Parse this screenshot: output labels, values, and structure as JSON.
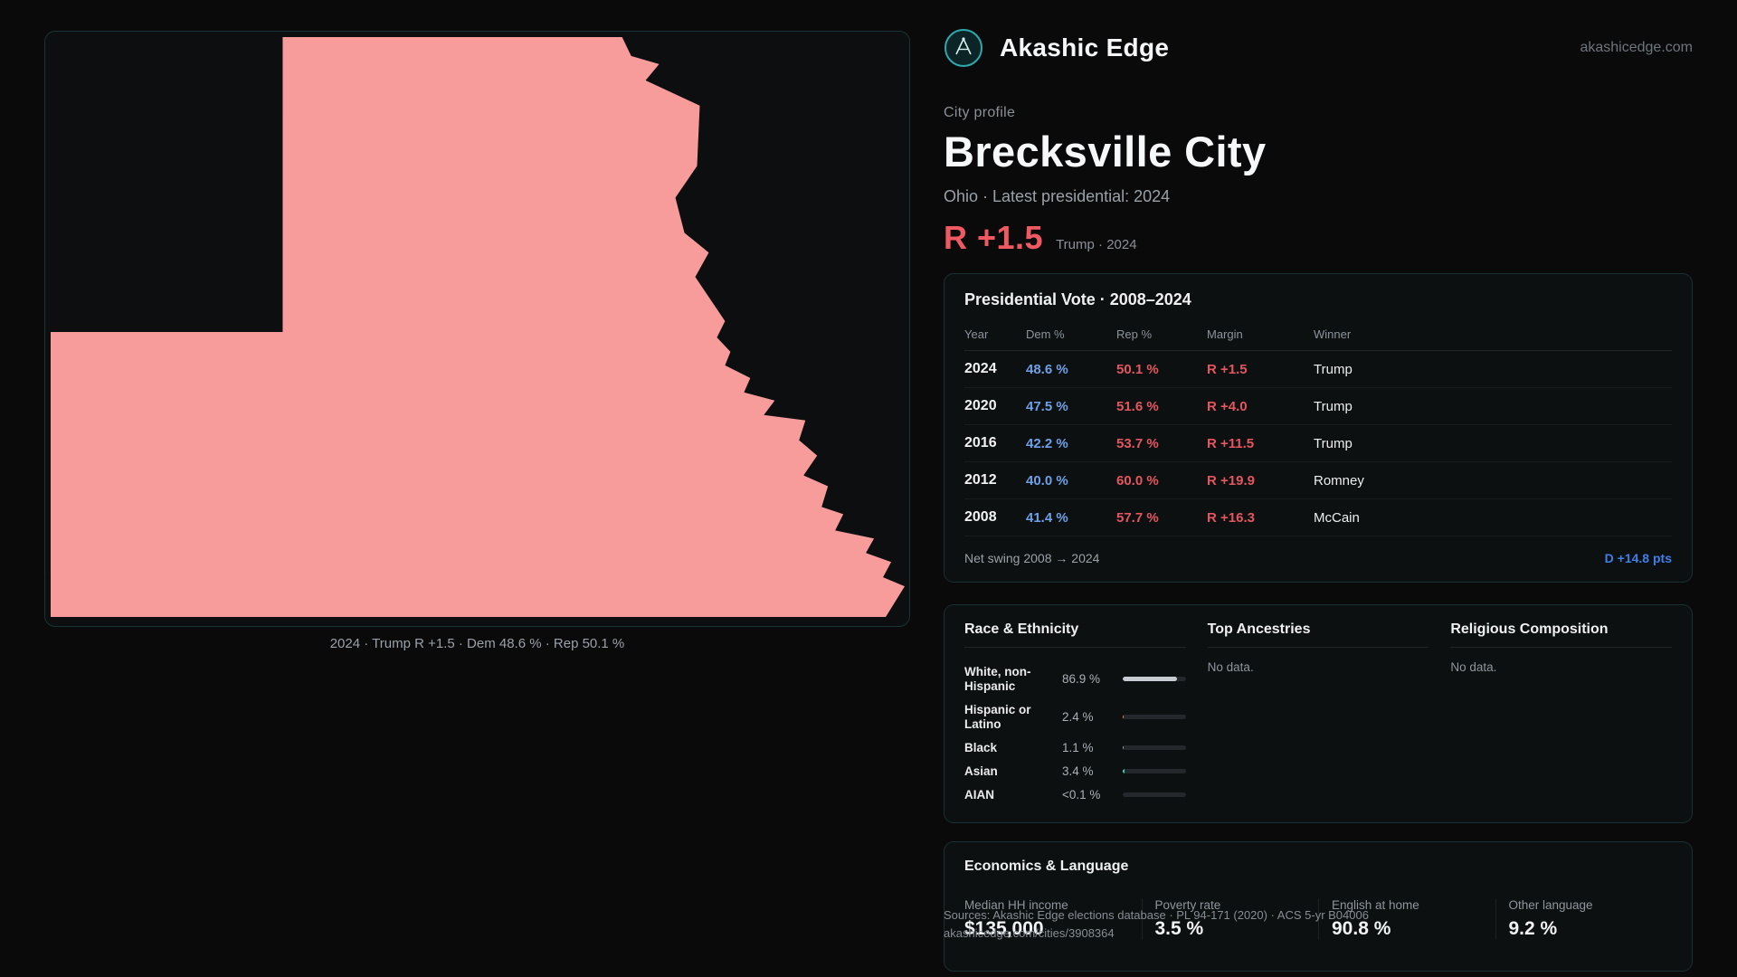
{
  "brand": {
    "name": "Akashic Edge",
    "domain": "akashicedge.com",
    "accent_teal": "#2fa9ad"
  },
  "profile": {
    "kicker": "City profile",
    "title": "Brecksville City",
    "subtitle": "Ohio · Latest presidential: 2024",
    "margin": "R +1.5",
    "margin_context": "Trump · 2024",
    "margin_color": "#ef5a62"
  },
  "map": {
    "caption": "2024 · Trump R +1.5 · Dem 48.6 % · Rep 50.1 %",
    "fill": "#f89b9b"
  },
  "presidential": {
    "title": "Presidential Vote · 2008–2024",
    "columns": [
      "Year",
      "Dem %",
      "Rep %",
      "Margin",
      "Winner"
    ],
    "rows": [
      {
        "year": "2024",
        "dem": "48.6 %",
        "rep": "50.1 %",
        "margin": "R +1.5",
        "winner": "Trump"
      },
      {
        "year": "2020",
        "dem": "47.5 %",
        "rep": "51.6 %",
        "margin": "R +4.0",
        "winner": "Trump"
      },
      {
        "year": "2016",
        "dem": "42.2 %",
        "rep": "53.7 %",
        "margin": "R +11.5",
        "winner": "Trump"
      },
      {
        "year": "2012",
        "dem": "40.0 %",
        "rep": "60.0 %",
        "margin": "R +19.9",
        "winner": "Romney"
      },
      {
        "year": "2008",
        "dem": "41.4 %",
        "rep": "57.7 %",
        "margin": "R +16.3",
        "winner": "McCain"
      }
    ],
    "net_swing_label": "Net swing 2008 → 2024",
    "net_swing_value": "D +14.8 pts",
    "dem_color": "#6fa0e6",
    "rep_color": "#e4565f",
    "swing_color": "#3f7fe8"
  },
  "demographics": {
    "race": {
      "title": "Race & Ethnicity",
      "rows": [
        {
          "label": "White, non-Hispanic",
          "value": "86.9 %",
          "pct": 86.9,
          "color": "#c7cbd2"
        },
        {
          "label": "Hispanic or Latino",
          "value": "2.4 %",
          "pct": 2.4,
          "color": "#e0913f"
        },
        {
          "label": "Black",
          "value": "1.1 %",
          "pct": 1.1,
          "color": "#9aa0a8"
        },
        {
          "label": "Asian",
          "value": "3.4 %",
          "pct": 3.4,
          "color": "#2fd6b5"
        },
        {
          "label": "AIAN",
          "value": "<0.1 %",
          "pct": 0,
          "color": "#9aa0a8"
        }
      ]
    },
    "ancestries": {
      "title": "Top Ancestries",
      "empty": "No data."
    },
    "religion": {
      "title": "Religious Composition",
      "empty": "No data."
    }
  },
  "economics": {
    "title": "Economics & Language",
    "stats": [
      {
        "label": "Median HH income",
        "value": "$135,000"
      },
      {
        "label": "Poverty rate",
        "value": "3.5 %"
      },
      {
        "label": "English at home",
        "value": "90.8 %"
      },
      {
        "label": "Other language",
        "value": "9.2 %"
      }
    ]
  },
  "footer": {
    "sources": "Sources: Akashic Edge elections database · PL 94-171 (2020) · ACS 5-yr B04006",
    "permalink": "akashicedge.com/cities/3908364"
  },
  "icons": {
    "logo": "compass-emblem-icon"
  }
}
